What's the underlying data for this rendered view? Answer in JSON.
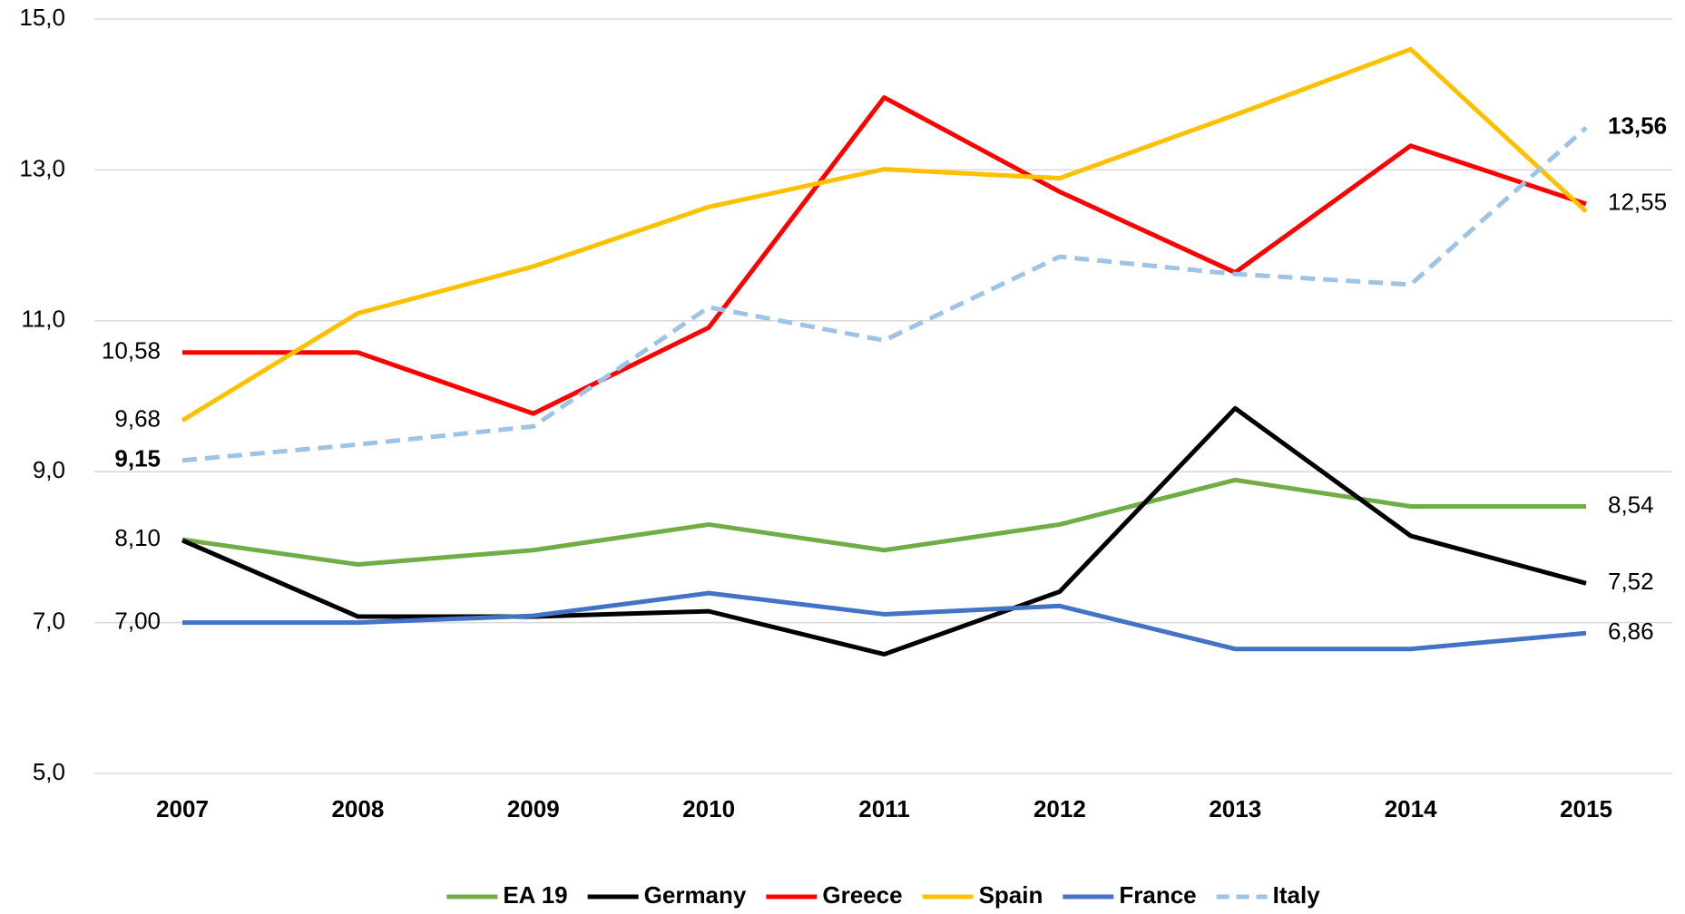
{
  "chart_data": {
    "type": "line",
    "categories": [
      "2007",
      "2008",
      "2009",
      "2010",
      "2011",
      "2012",
      "2013",
      "2014",
      "2015"
    ],
    "series": [
      {
        "name": "EA 19",
        "color": "#70ad47",
        "values": [
          8.1,
          7.77,
          7.96,
          8.3,
          7.96,
          8.3,
          8.89,
          8.54,
          8.54
        ],
        "value_labels": [
          "8,10",
          null,
          null,
          null,
          null,
          null,
          null,
          null,
          "8,54"
        ]
      },
      {
        "name": "Germany",
        "color": "#000000",
        "values": [
          8.09,
          7.08,
          7.08,
          7.15,
          6.58,
          7.41,
          9.84,
          8.15,
          7.52
        ],
        "value_labels": [
          null,
          null,
          null,
          null,
          null,
          null,
          null,
          null,
          "7,52"
        ]
      },
      {
        "name": "Greece",
        "color": "#ff0000",
        "values": [
          10.58,
          10.58,
          9.77,
          10.91,
          13.96,
          12.71,
          11.64,
          13.32,
          12.55
        ],
        "value_labels": [
          "10,58",
          null,
          null,
          null,
          null,
          null,
          null,
          null,
          "12,55"
        ]
      },
      {
        "name": "Spain",
        "color": "#ffc000",
        "values": [
          9.68,
          11.1,
          11.72,
          12.51,
          13.01,
          12.89,
          13.73,
          14.6,
          12.45
        ],
        "value_labels": [
          "9,68",
          null,
          null,
          null,
          null,
          null,
          null,
          null,
          null
        ]
      },
      {
        "name": "France",
        "color": "#4472c4",
        "values": [
          7.0,
          7.0,
          7.09,
          7.39,
          7.11,
          7.22,
          6.65,
          6.65,
          6.86
        ],
        "value_labels": [
          "7,00",
          null,
          null,
          null,
          null,
          null,
          null,
          null,
          "6,86"
        ]
      },
      {
        "name": "Italy",
        "color": "#9dc3e6",
        "dashed": true,
        "bold_labels": true,
        "values": [
          9.15,
          9.36,
          9.6,
          11.18,
          10.74,
          11.85,
          11.62,
          11.48,
          13.56
        ],
        "value_labels": [
          "9,15",
          null,
          null,
          null,
          null,
          null,
          null,
          null,
          "13,56"
        ]
      }
    ],
    "ylim": [
      5,
      15
    ],
    "yticks": [
      {
        "value": 5,
        "label": "5,0"
      },
      {
        "value": 7,
        "label": "7,0"
      },
      {
        "value": 9,
        "label": "9,0"
      },
      {
        "value": 11,
        "label": "11,0"
      },
      {
        "value": 13,
        "label": "13,0"
      },
      {
        "value": 15,
        "label": "15,0"
      }
    ],
    "grid": true,
    "legend": "bottom"
  }
}
